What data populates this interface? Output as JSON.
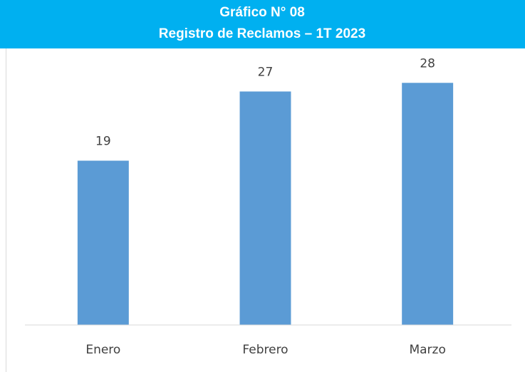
{
  "chart_data": {
    "type": "bar",
    "title": "Gráfico N° 08",
    "subtitle": "Registro de Reclamos – 1T 2023",
    "categories": [
      "Enero",
      "Febrero",
      "Marzo"
    ],
    "values": [
      19,
      27,
      28
    ],
    "color": "#5b9bd5",
    "ylim": [
      0,
      30
    ]
  }
}
